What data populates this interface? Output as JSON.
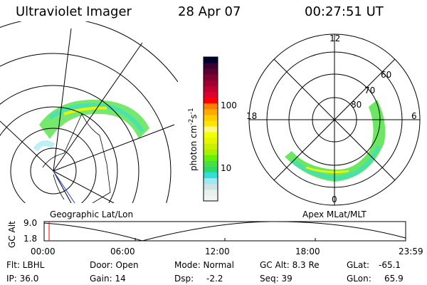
{
  "header": {
    "instrument": "Ultraviolet Imager",
    "date": "28 Apr 07",
    "time": "00:27:51 UT"
  },
  "colorbar": {
    "label": "photon cm",
    "exp1": "-2",
    "mid": "s",
    "exp2": "-1",
    "ticks": [
      "100",
      "10"
    ],
    "colors": [
      "#f3f5f2",
      "#e6f2ec",
      "#d0e3e3",
      "#9fe9f2",
      "#2ee0d8",
      "#2ed86a",
      "#47e03c",
      "#66f008",
      "#a6f000",
      "#c8f000",
      "#e6f500",
      "#f2ff00",
      "#fff880",
      "#ffe400",
      "#ffcc00",
      "#ffa800",
      "#ff8000",
      "#ff0000",
      "#e0002e",
      "#c0002e",
      "#a00030",
      "#800030",
      "#600030",
      "#3c0030",
      "#000030"
    ]
  },
  "left_map": {
    "label": "Geographic Lat/Lon"
  },
  "right_map": {
    "label": "Apex MLat/MLT",
    "mlt_labels": [
      "12",
      "18",
      "6",
      "0"
    ],
    "lat_labels": [
      "60",
      "70",
      "80"
    ]
  },
  "altitude_plot": {
    "ylabel": "GC Alt",
    "yticks": [
      "9.0",
      "1.8"
    ],
    "xticks": [
      "00:00",
      "06:00",
      "12:00",
      "18:00",
      "23:59"
    ],
    "current_time_marker": "00:27:51"
  },
  "status": {
    "filter": "Flt: LBHL",
    "ip": "IP: 36.0",
    "door": "Door: Open",
    "gain": "Gain: 14",
    "mode": "Mode: Normal",
    "dsp_label": "Dsp:",
    "dsp_value": "-2.2",
    "gc_alt": "GC Alt: 8.3 Re",
    "seq": "Seq: 39",
    "glat_label": "GLat:",
    "glat_value": "-65.1",
    "glon_label": "GLon:",
    "glon_value": "65.9"
  }
}
